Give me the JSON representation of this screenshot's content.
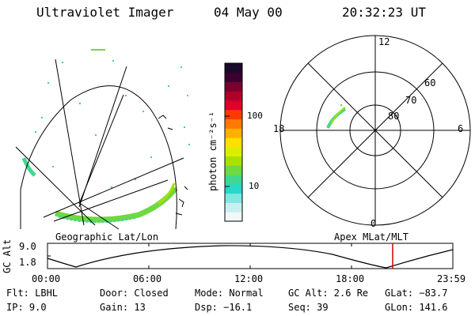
{
  "header": {
    "instrument": "Ultraviolet Imager",
    "date": "04 May 00",
    "time": "20:32:23 UT"
  },
  "left_panel": {
    "caption": "Geographic Lat/Lon"
  },
  "colorbar": {
    "unit_label": "photon cm⁻²s⁻¹",
    "tick_high": "100",
    "tick_low": "10",
    "colors": [
      "#1a0a2a",
      "#3b0030",
      "#7a0030",
      "#b0002a",
      "#e0002a",
      "#ff3a00",
      "#ff7a00",
      "#ffb000",
      "#ffe000",
      "#d8f000",
      "#a8e000",
      "#70d840",
      "#40d890",
      "#28d8c8",
      "#80e8e0",
      "#c8f0f0",
      "#f0f8f8"
    ]
  },
  "polar_panel": {
    "caption": "Apex MLat/MLT",
    "mlt_top": "12",
    "mlt_left": "18",
    "mlt_right": "6",
    "mlt_bottom": "0",
    "lat_60": "60",
    "lat_70": "70",
    "lat_80": "80"
  },
  "altitude_plot": {
    "axis_title": "GC Alt",
    "y_top": "9.0",
    "y_bottom": "1.8",
    "x_ticks": [
      "00:00",
      "06:00",
      "12:00",
      "18:00",
      "23:59"
    ],
    "marker_color": "#d00000"
  },
  "status": {
    "flt": "Flt: LBHL",
    "ip": "IP:  9.0",
    "door": "Door: Closed",
    "gain": "Gain: 13",
    "mode": "Mode: Normal",
    "dsp": "Dsp:  −16.1",
    "gc_alt": "GC Alt: 2.6 Re",
    "seq": "Seq: 39",
    "glat": "GLat: −83.7",
    "glon": "GLon: 141.6"
  }
}
